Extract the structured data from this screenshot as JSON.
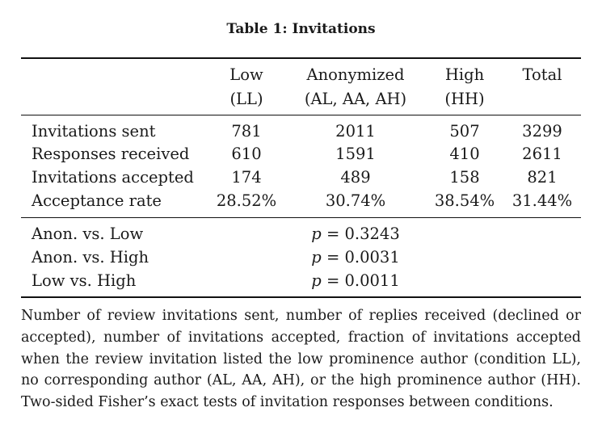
{
  "caption": "Table 1:  Invitations",
  "columns": [
    {
      "line1": "Low",
      "line2": "(LL)"
    },
    {
      "line1": "Anonymized",
      "line2": "(AL, AA, AH)"
    },
    {
      "line1": "High",
      "line2": "(HH)"
    },
    {
      "line1": "Total",
      "line2": ""
    }
  ],
  "rows": [
    {
      "label": "Invitations sent",
      "values": [
        "781",
        "2011",
        "507",
        "3299"
      ]
    },
    {
      "label": "Responses received",
      "values": [
        "610",
        "1591",
        "410",
        "2611"
      ]
    },
    {
      "label": "Invitations accepted",
      "values": [
        "174",
        "489",
        "158",
        "821"
      ]
    },
    {
      "label": "Acceptance rate",
      "values": [
        "28.52%",
        "30.74%",
        "38.54%",
        "31.44%"
      ]
    }
  ],
  "tests": [
    {
      "label": "Anon. vs. Low",
      "p_symbol": "p",
      "p_value": " = 0.3243"
    },
    {
      "label": "Anon. vs. High",
      "p_symbol": "p",
      "p_value": " = 0.0031"
    },
    {
      "label": "Low vs. High",
      "p_symbol": "p",
      "p_value": " = 0.0011"
    }
  ],
  "footnote": "Number of review invitations sent, number of replies received (declined or accepted), number of invitations accepted, fraction of invitations accepted when the review invitation listed the low prominence author (condition LL), no corresponding author (AL, AA, AH), or the high prominence author (HH). Two-sided Fisher’s exact tests of invitation responses between conditions."
}
